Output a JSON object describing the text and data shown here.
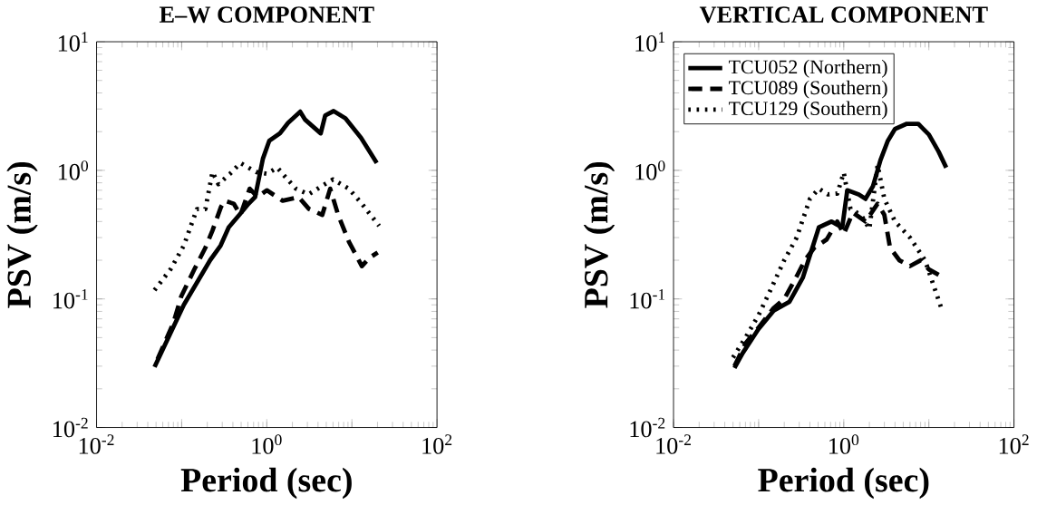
{
  "chart_data": [
    {
      "type": "line",
      "title": "E–W COMPONENT",
      "xlabel": "Period (sec)",
      "ylabel": "PSV (m/s)",
      "log": "xy",
      "xlim": [
        0.01,
        100
      ],
      "ylim": [
        0.01,
        10
      ],
      "xticks": [
        {
          "value": 0.01,
          "label": "10$^{-2}$"
        },
        {
          "value": 0.1,
          "label": null
        },
        {
          "value": 1,
          "label": "10$^{0}$"
        },
        {
          "value": 10,
          "label": null
        },
        {
          "value": 100,
          "label": "10$^{2}$"
        }
      ],
      "yticks": [
        {
          "value": 0.01,
          "label": "10$^{-2}$"
        },
        {
          "value": 0.1,
          "label": "10$^{-1}$"
        },
        {
          "value": 1,
          "label": "10$^{0}$"
        },
        {
          "value": 10,
          "label": "10$^{1}$"
        }
      ],
      "series": [
        {
          "color": "#000000",
          "line_style": "solid",
          "x": [
            0.048,
            0.106,
            0.216,
            0.287,
            0.357,
            0.476,
            0.61,
            0.73,
            0.9,
            1.07,
            1.43,
            1.78,
            2.47,
            2.83,
            4.3,
            4.86,
            6.1,
            8.4,
            12.8,
            19.6
          ],
          "values": [
            0.0296,
            0.09,
            0.2,
            0.26,
            0.36,
            0.45,
            0.55,
            0.62,
            1.23,
            1.7,
            1.94,
            2.34,
            2.86,
            2.47,
            1.94,
            2.67,
            2.89,
            2.54,
            1.79,
            1.14
          ]
        },
        {
          "color": "#000000",
          "line_style": "dashed",
          "x": [
            0.052,
            0.08,
            0.099,
            0.141,
            0.19,
            0.23,
            0.29,
            0.32,
            0.41,
            0.49,
            0.63,
            0.78,
            1.0,
            1.54,
            2.36,
            3.14,
            4.49,
            5.56,
            6.9,
            9.2,
            13.1,
            16.3,
            20.1
          ],
          "values": [
            0.034,
            0.065,
            0.105,
            0.17,
            0.25,
            0.34,
            0.52,
            0.58,
            0.55,
            0.45,
            0.72,
            0.62,
            0.7,
            0.58,
            0.62,
            0.5,
            0.45,
            0.72,
            0.45,
            0.28,
            0.18,
            0.21,
            0.23
          ]
        },
        {
          "color": "#000000",
          "line_style": "dotted",
          "x": [
            0.048,
            0.074,
            0.106,
            0.151,
            0.19,
            0.23,
            0.27,
            0.37,
            0.49,
            0.75,
            1.0,
            1.33,
            1.65,
            2.2,
            3.1,
            4.5,
            6.0,
            9.2,
            13.1,
            20.9
          ],
          "values": [
            0.117,
            0.17,
            0.26,
            0.5,
            0.5,
            0.97,
            0.78,
            0.94,
            1.14,
            0.97,
            0.94,
            1.05,
            0.89,
            0.72,
            0.65,
            0.76,
            0.85,
            0.72,
            0.55,
            0.37
          ]
        }
      ]
    },
    {
      "type": "line",
      "title": "VERTICAL COMPONENT",
      "xlabel": "Period (sec)",
      "ylabel": "PSV (m/s)",
      "log": "xy",
      "legend": "top left",
      "xlim": [
        0.01,
        100
      ],
      "ylim": [
        0.01,
        10
      ],
      "xticks": [
        {
          "value": 0.01,
          "label": "10$^{-2}$"
        },
        {
          "value": 0.1,
          "label": null
        },
        {
          "value": 1,
          "label": "10$^{0}$"
        },
        {
          "value": 10,
          "label": null
        },
        {
          "value": 100,
          "label": "10$^{2}$"
        }
      ],
      "yticks": [
        {
          "value": 0.01,
          "label": "10$^{-2}$"
        },
        {
          "value": 0.1,
          "label": "10$^{-1}$"
        },
        {
          "value": 1,
          "label": "10$^{0}$"
        },
        {
          "value": 10,
          "label": "10$^{1}$"
        }
      ],
      "series": [
        {
          "name": "TCU052 (Northern)",
          "color": "#000000",
          "line_style": "solid",
          "x": [
            0.052,
            0.065,
            0.099,
            0.15,
            0.23,
            0.33,
            0.51,
            0.72,
            0.96,
            1.1,
            1.5,
            1.8,
            2.2,
            2.7,
            3.3,
            4.0,
            5.5,
            7.5,
            10,
            13,
            16
          ],
          "values": [
            0.029,
            0.038,
            0.058,
            0.081,
            0.095,
            0.146,
            0.36,
            0.4,
            0.36,
            0.7,
            0.65,
            0.6,
            0.75,
            1.2,
            1.7,
            2.1,
            2.3,
            2.3,
            1.9,
            1.4,
            1.05
          ]
        },
        {
          "name": "TCU089 (Southern)",
          "color": "#000000",
          "line_style": "dashed",
          "x": [
            0.052,
            0.07,
            0.1,
            0.15,
            0.2,
            0.28,
            0.35,
            0.45,
            0.63,
            0.84,
            1.0,
            1.28,
            1.8,
            2.5,
            3.0,
            3.5,
            4.5,
            6,
            8,
            10,
            14
          ],
          "values": [
            0.03,
            0.045,
            0.06,
            0.085,
            0.1,
            0.15,
            0.2,
            0.25,
            0.29,
            0.4,
            0.32,
            0.47,
            0.4,
            0.55,
            0.45,
            0.25,
            0.2,
            0.18,
            0.2,
            0.17,
            0.15
          ]
        },
        {
          "name": "TCU129 (Southern)",
          "color": "#000000",
          "line_style": "dotted",
          "x": [
            0.05,
            0.07,
            0.1,
            0.14,
            0.2,
            0.28,
            0.4,
            0.51,
            0.65,
            0.84,
            1.0,
            1.2,
            1.6,
            2.0,
            2.5,
            3.0,
            4,
            6,
            9,
            14
          ],
          "values": [
            0.035,
            0.05,
            0.075,
            0.12,
            0.2,
            0.3,
            0.6,
            0.72,
            0.65,
            0.66,
            0.96,
            0.5,
            0.45,
            0.35,
            1.1,
            0.6,
            0.4,
            0.3,
            0.2,
            0.085
          ]
        }
      ]
    }
  ]
}
